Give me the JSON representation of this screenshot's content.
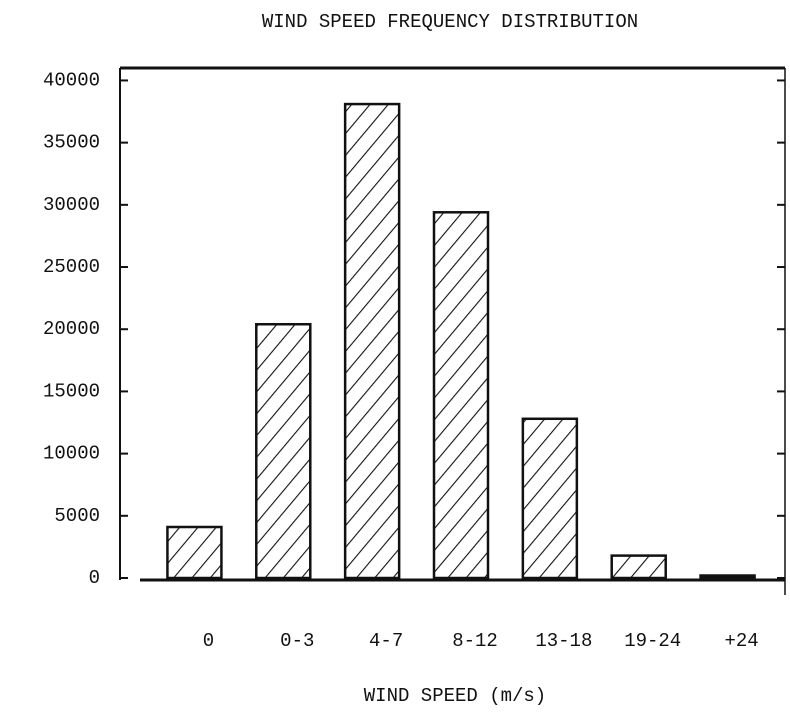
{
  "chart_data": {
    "type": "bar",
    "title": "WIND SPEED FREQUENCY DISTRIBUTION",
    "x_label": "WIND SPEED (m/s)",
    "categories": [
      "0",
      "0-3",
      "4-7",
      "8-12",
      "13-18",
      "19-24",
      "+24"
    ],
    "values": [
      4100,
      20400,
      38100,
      29400,
      12800,
      1800,
      200
    ],
    "color": "#111111",
    "ylim": [
      0,
      41000
    ],
    "yticks": [
      0,
      5000,
      10000,
      15000,
      20000,
      25000,
      30000,
      35000,
      40000
    ]
  }
}
